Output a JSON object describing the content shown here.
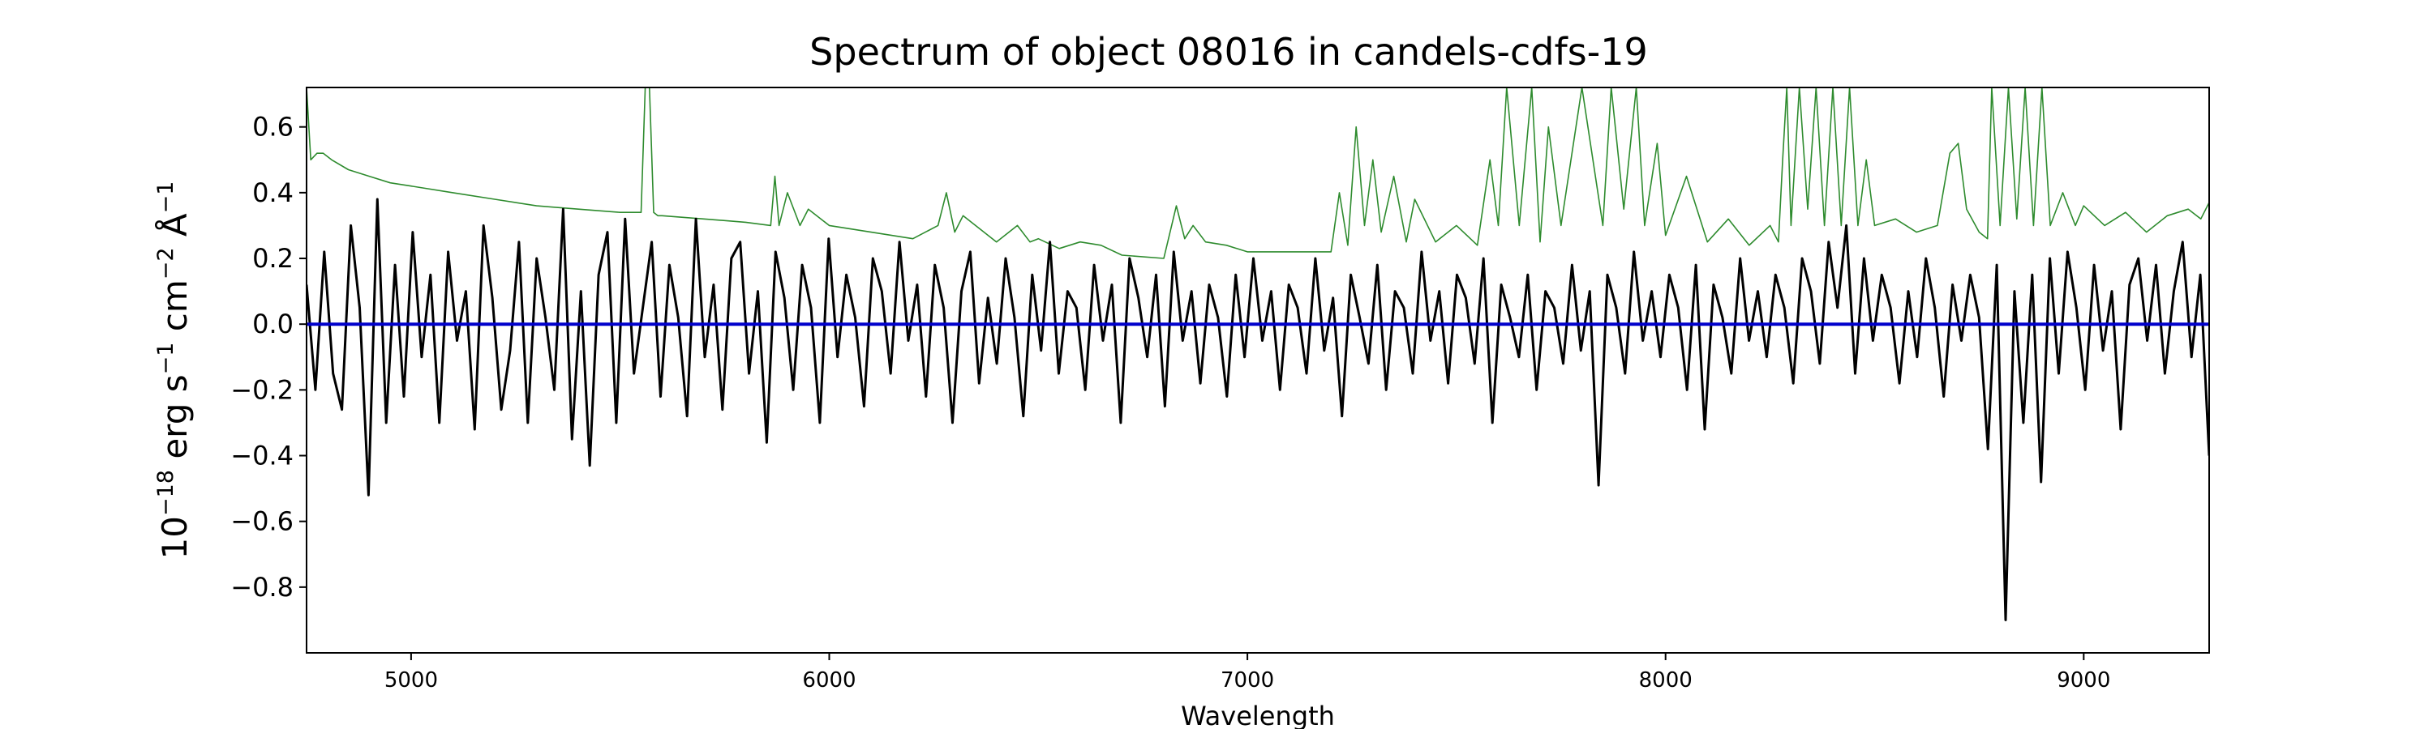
{
  "chart_data": {
    "type": "line",
    "title": "Spectrum of object 08016 in candels-cdfs-19",
    "xlabel": "Wavelength",
    "ylabel": {
      "base": "10",
      "exp1": "−18",
      "unit1": " erg s",
      "exp2": "−1",
      "unit2": " cm",
      "exp3": "−2",
      "unit3": " Å",
      "exp4": "−1"
    },
    "xlim": [
      4750,
      9300
    ],
    "ylim": [
      -1.0,
      0.72
    ],
    "xticks": [
      5000,
      6000,
      7000,
      8000,
      9000
    ],
    "xtick_labels": [
      "5000",
      "6000",
      "7000",
      "8000",
      "9000"
    ],
    "yticks": [
      0.6,
      0.4,
      0.2,
      0.0,
      -0.2,
      -0.4,
      -0.6,
      -0.8
    ],
    "ytick_labels": [
      "0.6",
      "0.4",
      "0.2",
      "0.0",
      "−0.2",
      "−0.4",
      "−0.6",
      "−0.8"
    ],
    "grid": false,
    "series": [
      {
        "role": "noise",
        "color": "#2e8b2e",
        "x": [
          4750,
          4760,
          4775,
          4790,
          4810,
          4850,
          4900,
          4950,
          5000,
          5100,
          5200,
          5300,
          5400,
          5500,
          5550,
          5560,
          5565,
          5570,
          5580,
          5590,
          5600,
          5700,
          5800,
          5860,
          5870,
          5880,
          5900,
          5930,
          5950,
          6000,
          6100,
          6200,
          6260,
          6280,
          6300,
          6320,
          6400,
          6450,
          6480,
          6500,
          6550,
          6600,
          6650,
          6700,
          6800,
          6830,
          6850,
          6870,
          6900,
          6950,
          7000,
          7100,
          7200,
          7220,
          7240,
          7260,
          7280,
          7300,
          7320,
          7350,
          7380,
          7400,
          7450,
          7500,
          7550,
          7580,
          7600,
          7620,
          7650,
          7680,
          7700,
          7720,
          7750,
          7800,
          7850,
          7870,
          7900,
          7930,
          7950,
          7980,
          8000,
          8050,
          8100,
          8150,
          8200,
          8250,
          8270,
          8280,
          8290,
          8300,
          8320,
          8340,
          8360,
          8380,
          8400,
          8420,
          8440,
          8460,
          8480,
          8500,
          8550,
          8600,
          8650,
          8680,
          8700,
          8720,
          8750,
          8770,
          8780,
          8800,
          8820,
          8840,
          8860,
          8880,
          8900,
          8920,
          8950,
          8980,
          9000,
          9050,
          9100,
          9150,
          9200,
          9250,
          9280,
          9300
        ],
        "y": [
          0.72,
          0.5,
          0.52,
          0.52,
          0.5,
          0.47,
          0.45,
          0.43,
          0.42,
          0.4,
          0.38,
          0.36,
          0.35,
          0.34,
          0.34,
          0.72,
          0.72,
          0.72,
          0.34,
          0.33,
          0.33,
          0.32,
          0.31,
          0.3,
          0.45,
          0.3,
          0.4,
          0.3,
          0.35,
          0.3,
          0.28,
          0.26,
          0.3,
          0.4,
          0.28,
          0.33,
          0.25,
          0.3,
          0.25,
          0.26,
          0.23,
          0.25,
          0.24,
          0.21,
          0.2,
          0.36,
          0.26,
          0.3,
          0.25,
          0.24,
          0.22,
          0.22,
          0.22,
          0.4,
          0.24,
          0.6,
          0.3,
          0.5,
          0.28,
          0.45,
          0.25,
          0.38,
          0.25,
          0.3,
          0.24,
          0.5,
          0.3,
          0.72,
          0.3,
          0.72,
          0.25,
          0.6,
          0.3,
          0.72,
          0.3,
          0.72,
          0.35,
          0.72,
          0.3,
          0.55,
          0.27,
          0.45,
          0.25,
          0.32,
          0.24,
          0.3,
          0.25,
          0.5,
          0.72,
          0.3,
          0.72,
          0.35,
          0.72,
          0.3,
          0.72,
          0.3,
          0.72,
          0.3,
          0.5,
          0.3,
          0.32,
          0.28,
          0.3,
          0.52,
          0.55,
          0.35,
          0.28,
          0.26,
          0.72,
          0.3,
          0.72,
          0.32,
          0.72,
          0.3,
          0.72,
          0.3,
          0.4,
          0.3,
          0.36,
          0.3,
          0.34,
          0.28,
          0.33,
          0.35,
          0.32,
          0.37
        ]
      },
      {
        "role": "flux",
        "color": "#000000",
        "x_start": 4750,
        "x_end": 9300,
        "y": [
          0.12,
          -0.2,
          0.22,
          -0.15,
          -0.26,
          0.3,
          0.05,
          -0.52,
          0.38,
          -0.3,
          0.18,
          -0.22,
          0.28,
          -0.1,
          0.15,
          -0.3,
          0.22,
          -0.05,
          0.1,
          -0.32,
          0.3,
          0.08,
          -0.26,
          -0.08,
          0.25,
          -0.3,
          0.2,
          0.02,
          -0.2,
          0.35,
          -0.35,
          0.1,
          -0.43,
          0.15,
          0.28,
          -0.3,
          0.32,
          -0.15,
          0.05,
          0.25,
          -0.22,
          0.18,
          0.02,
          -0.28,
          0.32,
          -0.1,
          0.12,
          -0.26,
          0.2,
          0.25,
          -0.15,
          0.1,
          -0.36,
          0.22,
          0.08,
          -0.2,
          0.18,
          0.05,
          -0.3,
          0.26,
          -0.1,
          0.15,
          0.02,
          -0.25,
          0.2,
          0.1,
          -0.15,
          0.25,
          -0.05,
          0.12,
          -0.22,
          0.18,
          0.05,
          -0.3,
          0.1,
          0.22,
          -0.18,
          0.08,
          -0.12,
          0.2,
          0.02,
          -0.28,
          0.15,
          -0.08,
          0.25,
          -0.15,
          0.1,
          0.05,
          -0.2,
          0.18,
          -0.05,
          0.12,
          -0.3,
          0.2,
          0.08,
          -0.1,
          0.15,
          -0.25,
          0.22,
          -0.05,
          0.1,
          -0.18,
          0.12,
          0.02,
          -0.22,
          0.15,
          -0.1,
          0.2,
          -0.05,
          0.1,
          -0.2,
          0.12,
          0.05,
          -0.15,
          0.2,
          -0.08,
          0.08,
          -0.28,
          0.15,
          0.02,
          -0.12,
          0.18,
          -0.2,
          0.1,
          0.05,
          -0.15,
          0.22,
          -0.05,
          0.1,
          -0.18,
          0.15,
          0.08,
          -0.12,
          0.2,
          -0.3,
          0.12,
          0.02,
          -0.1,
          0.15,
          -0.2,
          0.1,
          0.05,
          -0.12,
          0.18,
          -0.08,
          0.1,
          -0.49,
          0.15,
          0.05,
          -0.15,
          0.22,
          -0.05,
          0.1,
          -0.1,
          0.15,
          0.05,
          -0.2,
          0.18,
          -0.32,
          0.12,
          0.02,
          -0.15,
          0.2,
          -0.05,
          0.1,
          -0.1,
          0.15,
          0.05,
          -0.18,
          0.2,
          0.1,
          -0.12,
          0.25,
          0.05,
          0.3,
          -0.15,
          0.2,
          -0.05,
          0.15,
          0.05,
          -0.18,
          0.1,
          -0.1,
          0.2,
          0.05,
          -0.22,
          0.12,
          -0.05,
          0.15,
          0.02,
          -0.38,
          0.18,
          -0.9,
          0.1,
          -0.3,
          0.15,
          -0.48,
          0.2,
          -0.15,
          0.22,
          0.05,
          -0.2,
          0.18,
          -0.08,
          0.1,
          -0.32,
          0.12,
          0.2,
          -0.05,
          0.18,
          -0.15,
          0.1,
          0.25,
          -0.1,
          0.15,
          -0.4
        ]
      },
      {
        "role": "continuum",
        "color": "#0000cc",
        "x": [
          4750,
          9300
        ],
        "y": [
          0.0,
          0.0
        ]
      }
    ]
  }
}
